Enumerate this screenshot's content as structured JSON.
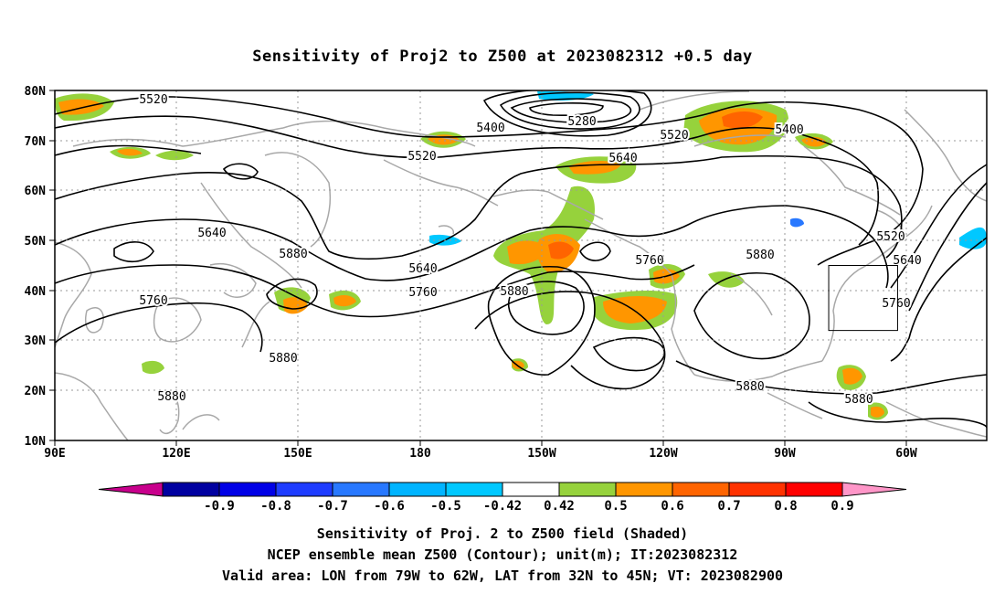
{
  "title": "Sensitivity of Proj2 to Z500 at 2023082312 +0.5 day",
  "map": {
    "lat_ticks": [
      "80N",
      "70N",
      "60N",
      "50N",
      "40N",
      "30N",
      "20N",
      "10N"
    ],
    "lon_ticks": [
      "90E",
      "120E",
      "150E",
      "180",
      "150W",
      "120W",
      "90W",
      "60W"
    ],
    "valid_box": {
      "lon": [
        -79,
        -62
      ],
      "lat": [
        32,
        45
      ]
    },
    "contour_labels": [
      "5520",
      "5400",
      "5280",
      "5520",
      "5400",
      "5520",
      "5640",
      "5640",
      "5880",
      "5760",
      "5880",
      "5880",
      "5640",
      "5760",
      "5880",
      "5760",
      "5880",
      "5520",
      "5640",
      "5760",
      "5880",
      "5880"
    ]
  },
  "colorbar": {
    "labels": [
      "-0.9",
      "-0.8",
      "-0.7",
      "-0.6",
      "-0.5",
      "-0.42",
      "0.42",
      "0.5",
      "0.6",
      "0.7",
      "0.8",
      "0.9"
    ],
    "colors": [
      "#c8008c",
      "#0000a0",
      "#0000e6",
      "#1e3cff",
      "#2878ff",
      "#00b4ff",
      "#00c8ff",
      "#ffffff",
      "#96d23c",
      "#ff9600",
      "#ff6400",
      "#ff3200",
      "#ff0000",
      "#ff96c8"
    ]
  },
  "captions": [
    "Sensitivity of Proj. 2 to Z500 field (Shaded)",
    "NCEP ensemble mean Z500 (Contour); unit(m); IT:2023082312",
    "Valid area: LON from 79W to 62W, LAT from 32N to 45N; VT: 2023082900"
  ]
}
